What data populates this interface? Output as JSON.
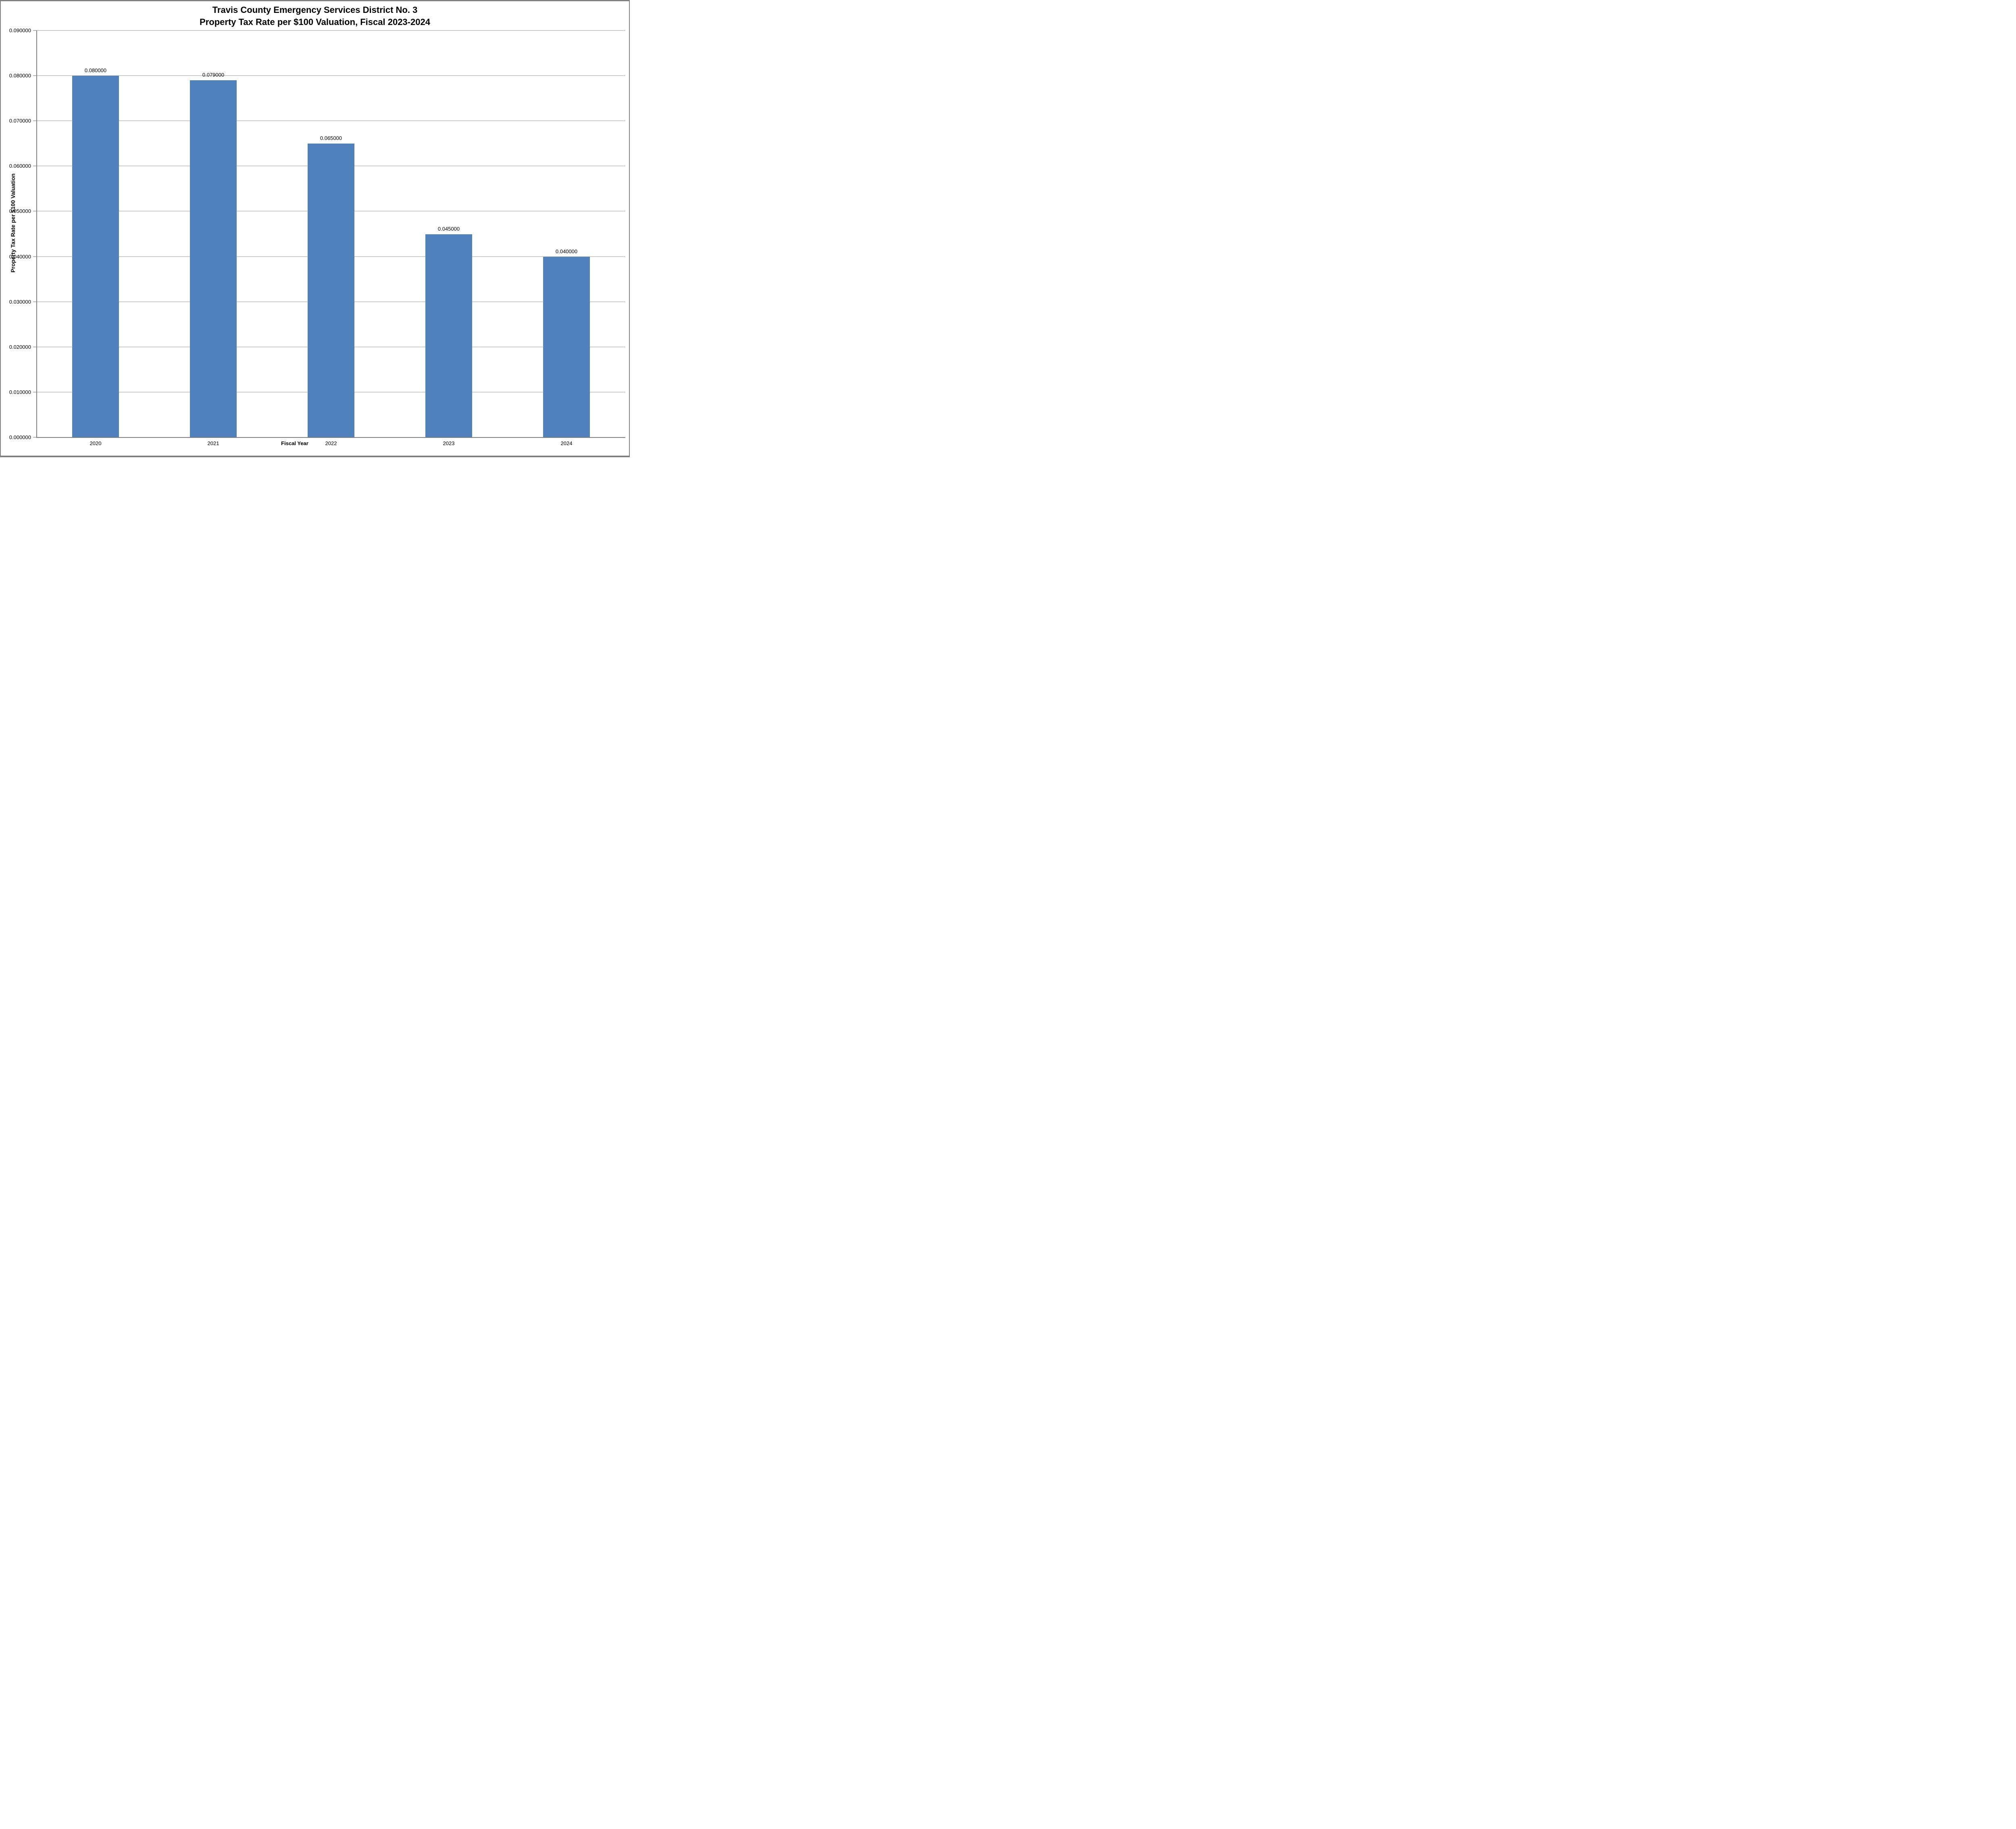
{
  "page": {
    "background": "#FFFFFF",
    "border_color": "#808080"
  },
  "chart_data": {
    "type": "bar",
    "title_line1": "Travis County Emergency Services District No. 3",
    "title_line2": "Property Tax Rate per $100 Valuation, Fiscal 2023-2024",
    "categories": [
      "2020",
      "2021",
      "2022",
      "2023",
      "2024"
    ],
    "values": [
      0.08,
      0.079,
      0.065,
      0.045,
      0.04
    ],
    "value_labels": [
      "0.080000",
      "0.079000",
      "0.065000",
      "0.045000",
      "0.040000"
    ],
    "xlabel": "Fiscal Year",
    "ylabel": "Property Tax Rate per $100 Valuation",
    "ylim": [
      0,
      0.09
    ],
    "y_tick_step": 0.01,
    "y_tick_labels": [
      "0.000000",
      "0.010000",
      "0.020000",
      "0.030000",
      "0.040000",
      "0.050000",
      "0.060000",
      "0.070000",
      "0.080000",
      "0.090000"
    ],
    "bar_color": "#4F81BD",
    "gridline_color": "#A6A6A6",
    "axis_color": "#808080",
    "grid": true,
    "legend": "none"
  }
}
